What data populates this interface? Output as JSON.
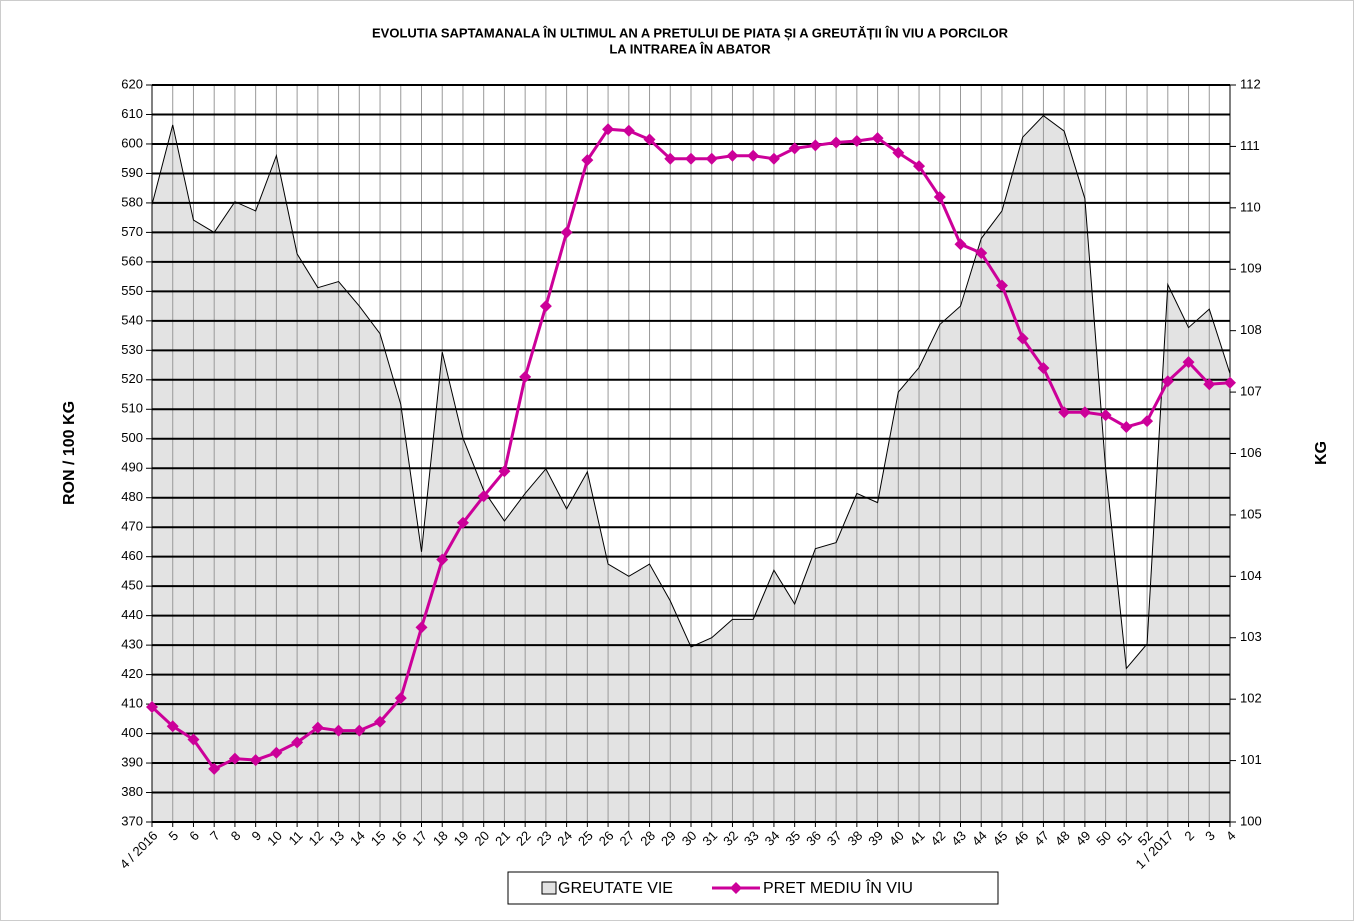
{
  "chart_data": {
    "type": "line",
    "title": [
      "EVOLUTIA SAPTAMANALA ÎN ULTIMUL AN A PRETULUI  DE PIATA ȘI A GREUTĂȚII ÎN VIU A PORCILOR",
      "LA INTRAREA ÎN ABATOR"
    ],
    "ylabel": "RON / 100 KG",
    "y2label": "KG",
    "categories": [
      "4 / 2016",
      "5",
      "6",
      "7",
      "8",
      "9",
      "10",
      "11",
      "12",
      "13",
      "14",
      "15",
      "16",
      "17",
      "18",
      "19",
      "20",
      "21",
      "22",
      "23",
      "24",
      "25",
      "26",
      "27",
      "28",
      "29",
      "30",
      "31",
      "32",
      "33",
      "34",
      "35",
      "36",
      "37",
      "38",
      "39",
      "40",
      "41",
      "42",
      "43",
      "44",
      "45",
      "46",
      "47",
      "48",
      "49",
      "50",
      "51",
      "52",
      "1 / 2017",
      "2",
      "3",
      "4"
    ],
    "series": [
      {
        "name": "GREUTATE VIE",
        "type": "area",
        "axis": "y2",
        "color": "#e3e3e3",
        "values": [
          110.05,
          111.35,
          109.8,
          109.6,
          110.1,
          109.95,
          110.85,
          109.25,
          108.7,
          108.8,
          108.4,
          107.95,
          106.8,
          104.4,
          107.65,
          106.25,
          105.4,
          104.9,
          105.35,
          105.75,
          105.1,
          105.7,
          104.2,
          104.0,
          104.2,
          103.6,
          102.85,
          103.0,
          103.3,
          103.3,
          104.1,
          103.55,
          104.45,
          104.55,
          105.35,
          105.2,
          107.0,
          107.4,
          108.1,
          108.4,
          109.5,
          109.95,
          111.15,
          111.5,
          111.25,
          110.15,
          105.75,
          102.5,
          102.9,
          108.75,
          108.05,
          108.35,
          107.3
        ]
      },
      {
        "name": "PRET MEDIU ÎN VIU",
        "type": "line",
        "color": "#cc0099",
        "values": [
          409,
          402.5,
          398,
          388,
          391.5,
          391,
          393.5,
          397,
          402,
          401,
          401,
          404,
          412,
          436,
          459,
          471.5,
          480.5,
          489,
          521,
          545,
          570,
          594.5,
          605,
          604.5,
          601.5,
          595,
          595,
          595,
          596,
          596,
          595,
          598.5,
          599.5,
          600.5,
          601,
          602,
          597,
          592.5,
          582,
          566,
          563,
          552,
          534,
          524,
          509,
          509,
          508,
          504,
          506,
          519.5,
          526,
          518.5,
          519
        ]
      }
    ],
    "ylim": [
      370,
      620
    ],
    "yticks": [
      370,
      380,
      390,
      400,
      410,
      420,
      430,
      440,
      450,
      460,
      470,
      480,
      490,
      500,
      510,
      520,
      530,
      540,
      550,
      560,
      570,
      580,
      590,
      600,
      610,
      620
    ],
    "y2lim": [
      100,
      112
    ],
    "y2ticks": [
      100,
      101,
      102,
      103,
      104,
      105,
      106,
      107,
      108,
      109,
      110,
      111,
      112
    ],
    "grid": true,
    "legend": "bottom"
  }
}
